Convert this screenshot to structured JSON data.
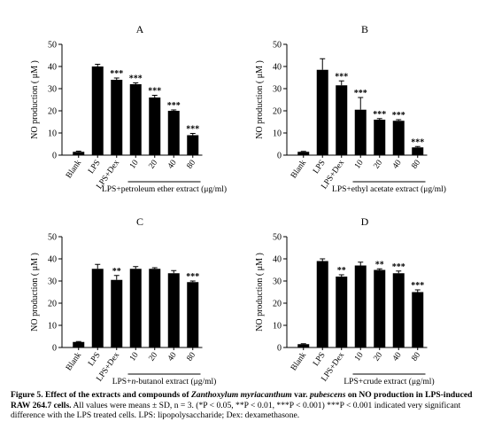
{
  "chart_data": [
    {
      "type": "bar",
      "panel_label": "A",
      "ylabel": "NO production ( μM )",
      "ylim": [
        0,
        50
      ],
      "yticks": [
        0,
        10,
        20,
        30,
        40,
        50
      ],
      "categories": [
        "Blank",
        "LPS",
        "LPS+Dex",
        "10",
        "20",
        "40",
        "80"
      ],
      "values": [
        1.5,
        40,
        34,
        32,
        26,
        20,
        9
      ],
      "errors": [
        0.3,
        1.0,
        0.8,
        0.6,
        1.0,
        0.4,
        0.8
      ],
      "significance": [
        "",
        "",
        "***",
        "***",
        "***",
        "***",
        "***"
      ],
      "group_label": "LPS+petroleum ether extract (μg/ml)",
      "bar_color": "#000000"
    },
    {
      "type": "bar",
      "panel_label": "B",
      "ylabel": "NO production ( μM )",
      "ylim": [
        0,
        50
      ],
      "yticks": [
        0,
        10,
        20,
        30,
        40,
        50
      ],
      "categories": [
        "Blank",
        "LPS",
        "LPS+Dex",
        "10",
        "20",
        "40",
        "80"
      ],
      "values": [
        1.5,
        38.5,
        31.5,
        20.5,
        16,
        15.5,
        3.5
      ],
      "errors": [
        0.2,
        5.0,
        2.0,
        5.5,
        0.5,
        0.5,
        0.4
      ],
      "significance": [
        "",
        "",
        "***",
        "***",
        "***",
        "***",
        "***"
      ],
      "group_label": "LPS+ethyl acetate extract (μg/ml)",
      "bar_color": "#000000"
    },
    {
      "type": "bar",
      "panel_label": "C",
      "ylabel": "NO production ( μM )",
      "ylim": [
        0,
        50
      ],
      "yticks": [
        0,
        10,
        20,
        30,
        40,
        50
      ],
      "categories": [
        "Blank",
        "LPS",
        "LPS+Dex",
        "10",
        "20",
        "40",
        "80"
      ],
      "values": [
        2.5,
        35.5,
        30.5,
        35.5,
        35.5,
        33.5,
        29.5
      ],
      "errors": [
        0.2,
        2.0,
        2.0,
        1.0,
        0.5,
        1.2,
        0.5
      ],
      "significance": [
        "",
        "",
        "**",
        "",
        "",
        "",
        "***"
      ],
      "group_label_parts": [
        "LPS+",
        "n",
        "-butanol extract (μg/ml)"
      ],
      "bar_color": "#000000"
    },
    {
      "type": "bar",
      "panel_label": "D",
      "ylabel": "NO production ( μM )",
      "ylim": [
        0,
        50
      ],
      "yticks": [
        0,
        10,
        20,
        30,
        40,
        50
      ],
      "categories": [
        "Blank",
        "LPS",
        "LPS+Dex",
        "10",
        "20",
        "40",
        "80"
      ],
      "values": [
        1.5,
        39,
        32,
        37,
        35,
        33.5,
        25
      ],
      "errors": [
        0.2,
        1.0,
        0.8,
        1.5,
        0.5,
        1.0,
        1.0
      ],
      "significance": [
        "",
        "",
        "**",
        "",
        "**",
        "***",
        "***"
      ],
      "group_label": "LPS+crude extract (μg/ml)",
      "bar_color": "#000000"
    }
  ],
  "caption": {
    "title_prefix": "Figure 5.  Effect of the extracts and compounds of ",
    "title_species": "Zanthoxylum myriacanthum",
    "title_mid": " var. ",
    "title_variety": "pubescens",
    "title_suffix": " on NO production in LPS-induced RAW 264.7 cells.",
    "body": "All values were means ± SD, n = 3. (*P < 0.05, **P < 0.01, ***P < 0.001) ***P < 0.001 indicated very significant difference with the LPS treated cells. LPS: lipopolysaccharide; Dex: dexamethasone."
  }
}
